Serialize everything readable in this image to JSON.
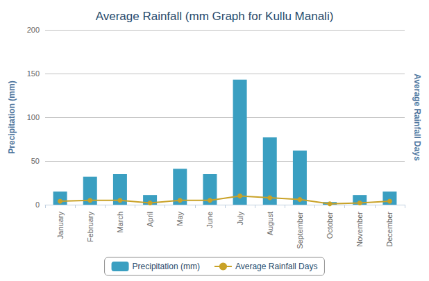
{
  "chart_data": {
    "type": "bar",
    "title": "Average Rainfall (mm Graph for Kullu Manali)",
    "categories": [
      "January",
      "February",
      "March",
      "April",
      "May",
      "June",
      "July",
      "August",
      "September",
      "October",
      "November",
      "December"
    ],
    "series": [
      {
        "name": "Precipitation (mm)",
        "type": "bar",
        "color": "#3a9fc1",
        "values": [
          15,
          32,
          35,
          11,
          41,
          35,
          143,
          77,
          62,
          3,
          11,
          15
        ]
      },
      {
        "name": "Average Rainfall Days",
        "type": "line",
        "color": "#c9a227",
        "marker": "circle",
        "values": [
          4,
          5,
          5,
          2,
          5,
          5,
          10,
          8,
          6,
          1,
          2,
          4
        ]
      }
    ],
    "ylabel": "Precipitation (mm)",
    "y2label": "Average Rainfall Days",
    "ylim": [
      0,
      200
    ],
    "yticks": [
      0,
      50,
      100,
      150,
      200
    ],
    "grid": true,
    "legend": "bottom"
  }
}
